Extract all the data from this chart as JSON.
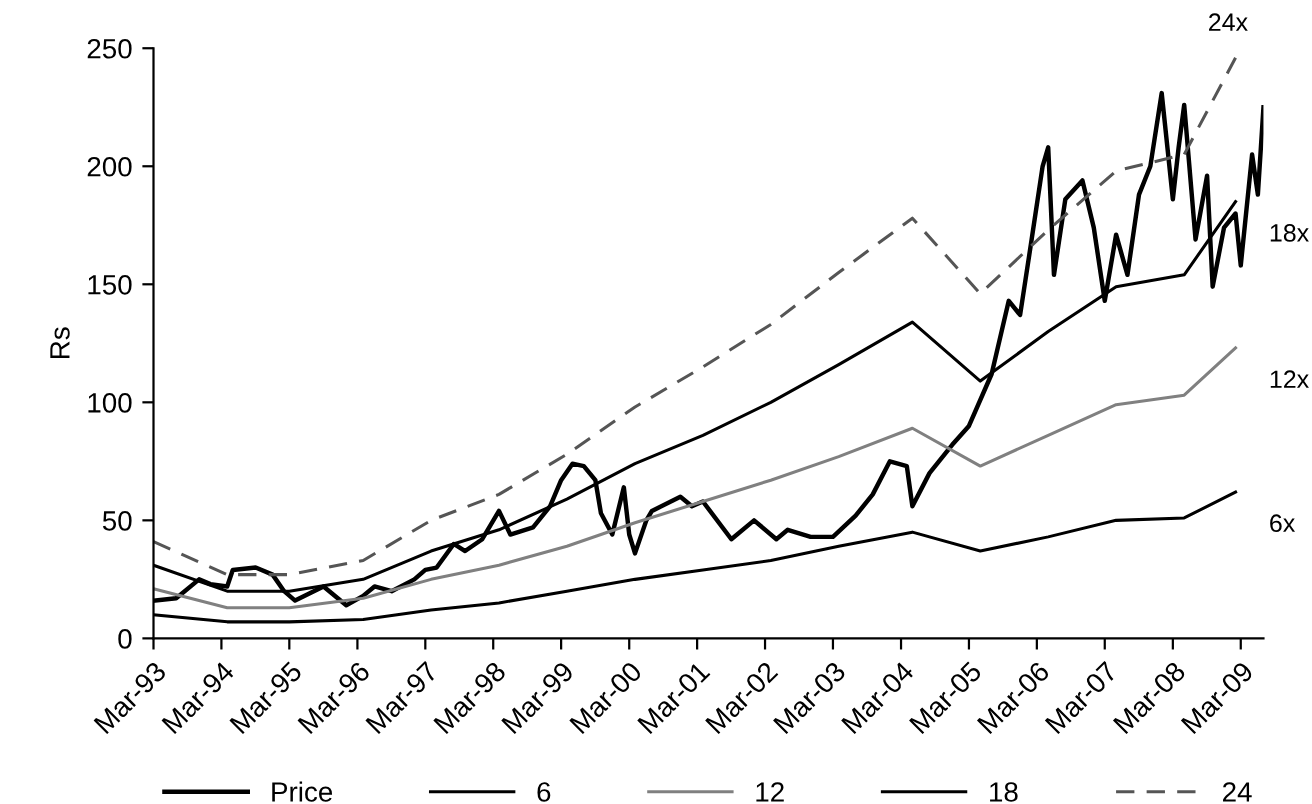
{
  "chart_data": {
    "type": "line",
    "ylabel": "Rs",
    "xlim": [
      "1993-03",
      "2009-07"
    ],
    "ylim": [
      0,
      250
    ],
    "yticks": [
      0,
      50,
      100,
      150,
      200,
      250
    ],
    "xticks": [
      {
        "value": "1993-03",
        "label": "Mar-93"
      },
      {
        "value": "1994-03",
        "label": "Mar-94"
      },
      {
        "value": "1995-03",
        "label": "Mar-95"
      },
      {
        "value": "1996-03",
        "label": "Mar-96"
      },
      {
        "value": "1997-03",
        "label": "Mar-97"
      },
      {
        "value": "1998-03",
        "label": "Mar-98"
      },
      {
        "value": "1999-03",
        "label": "Mar-99"
      },
      {
        "value": "2000-03",
        "label": "Mar-00"
      },
      {
        "value": "2001-03",
        "label": "Mar-01"
      },
      {
        "value": "2002-03",
        "label": "Mar-02"
      },
      {
        "value": "2003-03",
        "label": "Mar-03"
      },
      {
        "value": "2004-03",
        "label": "Mar-04"
      },
      {
        "value": "2005-03",
        "label": "Mar-05"
      },
      {
        "value": "2006-03",
        "label": "Mar-06"
      },
      {
        "value": "2007-03",
        "label": "Mar-07"
      },
      {
        "value": "2008-03",
        "label": "Mar-08"
      },
      {
        "value": "2009-03",
        "label": "Mar-09"
      }
    ],
    "grid": false,
    "legend": "bottom",
    "marker": "none",
    "series": [
      {
        "name": "Price",
        "color": "#000000",
        "line_style": "solid",
        "x": [
          "1993-03",
          "1993-07",
          "1993-11",
          "1994-01",
          "1994-04",
          "1994-05",
          "1994-09",
          "1994-12",
          "1995-02",
          "1995-04",
          "1995-09",
          "1996-01",
          "1996-04",
          "1996-06",
          "1996-09",
          "1997-01",
          "1997-03",
          "1997-05",
          "1997-08",
          "1997-10",
          "1998-01",
          "1998-04",
          "1998-06",
          "1998-10",
          "1999-01",
          "1999-03",
          "1999-05",
          "1999-07",
          "1999-09",
          "1999-10",
          "1999-12",
          "2000-02",
          "2000-03",
          "2000-04",
          "2000-06",
          "2000-07",
          "2000-12",
          "2001-02",
          "2001-04",
          "2001-09",
          "2002-01",
          "2002-05",
          "2002-07",
          "2002-11",
          "2003-03",
          "2003-07",
          "2003-10",
          "2004-01",
          "2004-04",
          "2004-05",
          "2004-08",
          "2004-12",
          "2005-03",
          "2005-07",
          "2005-10",
          "2005-12",
          "2006-02",
          "2006-04",
          "2006-05",
          "2006-06",
          "2006-08",
          "2006-11",
          "2007-01",
          "2007-03",
          "2007-05",
          "2007-07",
          "2007-09",
          "2007-11",
          "2008-01",
          "2008-03",
          "2008-04",
          "2008-05",
          "2008-07",
          "2008-09",
          "2008-10",
          "2008-12",
          "2009-02",
          "2009-03",
          "2009-05",
          "2009-06",
          "2009-07"
        ],
        "values": [
          16,
          17,
          25,
          23,
          22,
          29,
          30,
          27,
          20,
          16,
          22,
          14,
          18,
          22,
          20,
          25,
          29,
          30,
          40,
          37,
          42,
          54,
          44,
          47,
          56,
          67,
          74,
          73,
          67,
          53,
          44,
          64,
          44,
          36,
          50,
          54,
          60,
          56,
          58,
          42,
          50,
          42,
          46,
          43,
          43,
          52,
          61,
          75,
          73,
          56,
          70,
          82,
          90,
          112,
          143,
          137,
          169,
          200,
          208,
          154,
          186,
          194,
          174,
          143,
          171,
          154,
          188,
          200,
          231,
          186,
          208,
          226,
          169,
          196,
          149,
          174,
          180,
          158,
          205,
          188,
          225
        ]
      },
      {
        "name": "6",
        "color": "#000000",
        "line_style": "solid",
        "x": [
          "1993-03",
          "1994-04",
          "1995-03",
          "1996-04",
          "1997-04",
          "1998-04",
          "1999-04",
          "2000-04",
          "2001-04",
          "2002-04",
          "2003-04",
          "2004-05",
          "2005-05",
          "2006-05",
          "2007-05",
          "2008-05",
          "2009-02"
        ],
        "values": [
          10,
          7,
          7,
          8,
          12,
          15,
          20,
          25,
          29,
          33,
          39,
          45,
          37,
          43,
          50,
          51,
          62
        ]
      },
      {
        "name": "12",
        "color": "#808080",
        "line_style": "solid",
        "x": [
          "1993-03",
          "1994-04",
          "1995-03",
          "1996-04",
          "1997-04",
          "1998-04",
          "1999-04",
          "2000-04",
          "2001-04",
          "2002-04",
          "2003-04",
          "2004-05",
          "2005-05",
          "2006-05",
          "2007-05",
          "2008-05",
          "2009-02"
        ],
        "values": [
          21,
          13,
          13,
          17,
          25,
          31,
          39,
          49,
          58,
          67,
          77,
          89,
          73,
          86,
          99,
          103,
          123
        ]
      },
      {
        "name": "18",
        "color": "#000000",
        "line_style": "solid",
        "x": [
          "1993-03",
          "1994-04",
          "1995-03",
          "1996-04",
          "1997-04",
          "1998-04",
          "1999-04",
          "2000-04",
          "2001-04",
          "2002-04",
          "2003-04",
          "2004-05",
          "2005-05",
          "2006-05",
          "2007-05",
          "2008-05",
          "2009-02"
        ],
        "values": [
          31,
          20,
          20,
          25,
          37,
          46,
          59,
          74,
          86,
          100,
          116,
          134,
          109,
          130,
          149,
          154,
          185
        ]
      },
      {
        "name": "24",
        "color": "#555555",
        "line_style": "dashed",
        "x": [
          "1993-03",
          "1994-04",
          "1995-03",
          "1996-04",
          "1997-04",
          "1998-04",
          "1999-04",
          "2000-04",
          "2001-04",
          "2002-04",
          "2003-04",
          "2004-05",
          "2005-05",
          "2006-05",
          "2007-05",
          "2008-05",
          "2009-02"
        ],
        "values": [
          41,
          27,
          27,
          33,
          50,
          61,
          78,
          98,
          115,
          133,
          155,
          178,
          146,
          173,
          198,
          205,
          246
        ]
      }
    ],
    "annotations": [
      {
        "text": "24x",
        "x": "2009-02",
        "y": 246
      },
      {
        "text": "18x",
        "x": "2009-02",
        "y": 185
      },
      {
        "text": "12x",
        "x": "2009-02",
        "y": 123
      },
      {
        "text": "6x",
        "x": "2009-02",
        "y": 62
      }
    ]
  }
}
